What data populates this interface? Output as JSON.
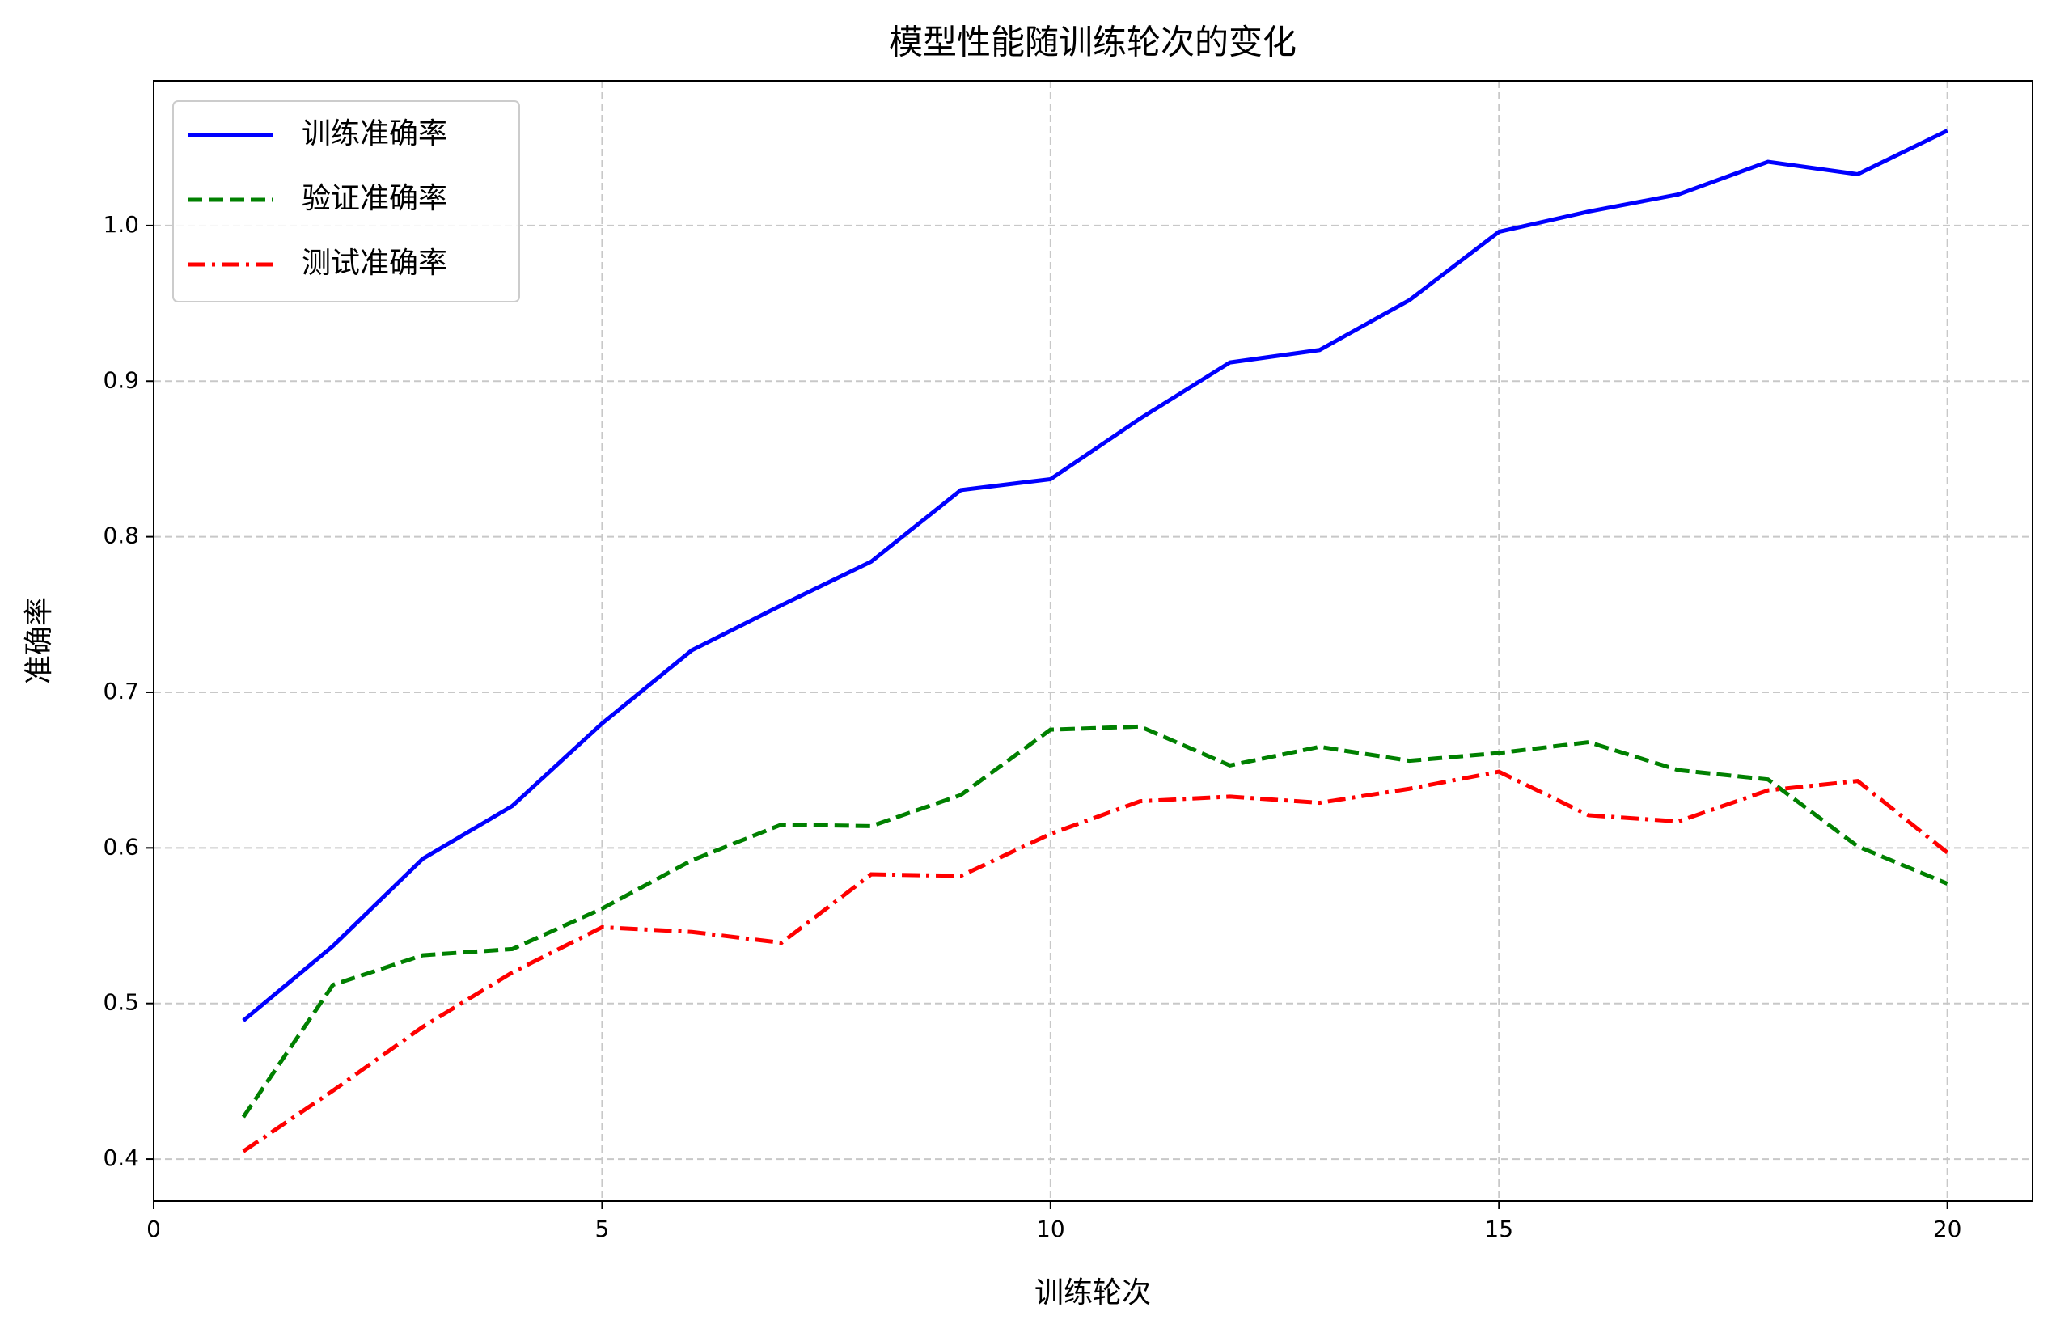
{
  "chart_data": {
    "type": "line",
    "title": "模型性能随训练轮次的变化",
    "x_label": "训练轮次",
    "y_label": "准确率",
    "x": [
      1,
      2,
      3,
      4,
      5,
      6,
      7,
      8,
      9,
      10,
      11,
      12,
      13,
      14,
      15,
      16,
      17,
      18,
      19,
      20
    ],
    "series": [
      {
        "name": "训练准确率",
        "color": "#0000ff",
        "style": "solid",
        "values": [
          0.489,
          0.537,
          0.593,
          0.627,
          0.68,
          0.727,
          0.756,
          0.784,
          0.83,
          0.837,
          0.876,
          0.912,
          0.92,
          0.952,
          0.996,
          1.009,
          1.02,
          1.041,
          1.033,
          1.061
        ]
      },
      {
        "name": "验证准确率",
        "color": "#008000",
        "style": "dashed",
        "values": [
          0.427,
          0.512,
          0.531,
          0.535,
          0.561,
          0.592,
          0.615,
          0.614,
          0.634,
          0.676,
          0.678,
          0.653,
          0.665,
          0.656,
          0.661,
          0.668,
          0.65,
          0.644,
          0.601,
          0.577
        ]
      },
      {
        "name": "测试准确率",
        "color": "#ff0000",
        "style": "dashdot",
        "values": [
          0.405,
          0.444,
          0.485,
          0.52,
          0.549,
          0.546,
          0.539,
          0.583,
          0.582,
          0.609,
          0.63,
          0.633,
          0.629,
          0.638,
          0.649,
          0.621,
          0.617,
          0.637,
          0.643,
          0.597
        ]
      }
    ],
    "xlim": [
      0,
      20.95
    ],
    "ylim": [
      0.373,
      1.093
    ],
    "xticks": [
      0,
      5,
      10,
      15,
      20
    ],
    "yticks": [
      0.4,
      0.5,
      0.6,
      0.7,
      0.8,
      0.9,
      {
        "value": 1,
        "label": "1.0"
      }
    ],
    "grid": true,
    "legend": "upper-left"
  }
}
